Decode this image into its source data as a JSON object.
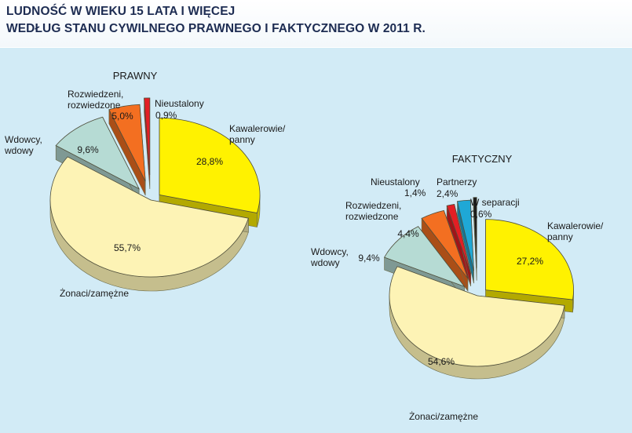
{
  "header": {
    "line1": "LUDNOŚĆ W WIEKU 15 LATA I WIĘCEJ",
    "line2": "WEDŁUG STANU CYWILNEGO PRAWNEGO I FAKTYCZNEGO W 2011 R."
  },
  "colors": {
    "panel_bg": "#d2ebf6",
    "kawalerowie": "#fff200",
    "zonaci": "#fdf3b5",
    "wdowcy": "#b6dbd4",
    "rozwiedzeni": "#f36f21",
    "nieustalony": "#e31e24",
    "partnerzy": "#1fa8d6",
    "separacja": "#1a1a1a"
  },
  "chart_data": [
    {
      "type": "pie",
      "title": "PRAWNY",
      "slices": [
        {
          "key": "kawalerowie",
          "label": [
            "Kawalerowie/",
            "panny"
          ],
          "value": 28.8,
          "value_label": "28,8%"
        },
        {
          "key": "zonaci",
          "label": [
            "Żonaci/zamężne"
          ],
          "value": 55.7,
          "value_label": "55,7%"
        },
        {
          "key": "wdowcy",
          "label": [
            "Wdowcy,",
            "wdowy"
          ],
          "value": 9.6,
          "value_label": "9,6%"
        },
        {
          "key": "rozwiedzeni",
          "label": [
            "Rozwiedzeni,",
            "rozwiedzone"
          ],
          "value": 5.0,
          "value_label": "5,0%"
        },
        {
          "key": "nieustalony",
          "label": [
            "Nieustalony"
          ],
          "value": 0.9,
          "value_label": "0,9%"
        }
      ]
    },
    {
      "type": "pie",
      "title": "FAKTYCZNY",
      "slices": [
        {
          "key": "kawalerowie",
          "label": [
            "Kawalerowie/",
            "panny"
          ],
          "value": 27.2,
          "value_label": "27,2%"
        },
        {
          "key": "zonaci",
          "label": [
            "Żonaci/zamężne"
          ],
          "value": 54.6,
          "value_label": "54,6%"
        },
        {
          "key": "wdowcy",
          "label": [
            "Wdowcy,",
            "wdowy"
          ],
          "value": 9.4,
          "value_label": "9,4%"
        },
        {
          "key": "rozwiedzeni",
          "label": [
            "Rozwiedzeni,",
            "rozwiedzone"
          ],
          "value": 4.4,
          "value_label": "4,4%"
        },
        {
          "key": "nieustalony",
          "label": [
            "Nieustalony"
          ],
          "value": 1.4,
          "value_label": "1,4%"
        },
        {
          "key": "partnerzy",
          "label": [
            "Partnerzy"
          ],
          "value": 2.4,
          "value_label": "2,4%"
        },
        {
          "key": "separacja",
          "label": [
            "W separacji"
          ],
          "value": 0.6,
          "value_label": "0,6%"
        }
      ]
    }
  ]
}
